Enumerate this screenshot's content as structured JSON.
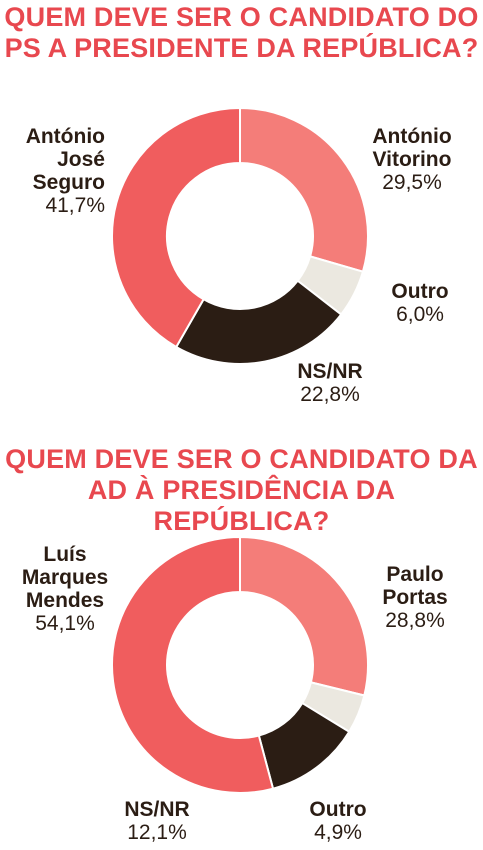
{
  "colors": {
    "title": "#e8484f",
    "candidate_a": "#f05d5e",
    "candidate_b": "#f47d79",
    "outro": "#ebe8e0",
    "nsnr": "#2b1d14",
    "text": "#2b1d14"
  },
  "chart_data": [
    {
      "type": "donut",
      "title": "QUEM DEVE SER O CANDIDATO DO PS A PRESIDENTE DA REPÚBLICA?",
      "slices": [
        {
          "name": "António Vitorino",
          "value": 29.5,
          "label": "29,5%",
          "color": "#f47d79"
        },
        {
          "name": "Outro",
          "value": 6.0,
          "label": "6,0%",
          "color": "#ebe8e0"
        },
        {
          "name": "NS/NR",
          "value": 22.8,
          "label": "22,8%",
          "color": "#2b1d14"
        },
        {
          "name": "António José Seguro",
          "value": 41.7,
          "label": "41,7%",
          "color": "#f05d5e"
        }
      ]
    },
    {
      "type": "donut",
      "title": "QUEM DEVE SER O CANDIDATO DA AD À PRESIDÊNCIA DA REPÚBLICA?",
      "slices": [
        {
          "name": "Paulo Portas",
          "value": 28.8,
          "label": "28,8%",
          "color": "#f47d79"
        },
        {
          "name": "Outro",
          "value": 4.9,
          "label": "4,9%",
          "color": "#ebe8e0"
        },
        {
          "name": "NS/NR",
          "value": 12.1,
          "label": "12,1%",
          "color": "#2b1d14"
        },
        {
          "name": "Luís Marques Mendes",
          "value": 54.1,
          "label": "54,1%",
          "color": "#f05d5e"
        }
      ]
    }
  ],
  "labels": {
    "chart1": {
      "vitorino_name": "António\nVitorino",
      "seguro_name": "António\nJosé\nSeguro"
    },
    "chart2": {
      "portas_name": "Paulo\nPortas",
      "mendes_name": "Luís\nMarques\nMendes"
    }
  }
}
